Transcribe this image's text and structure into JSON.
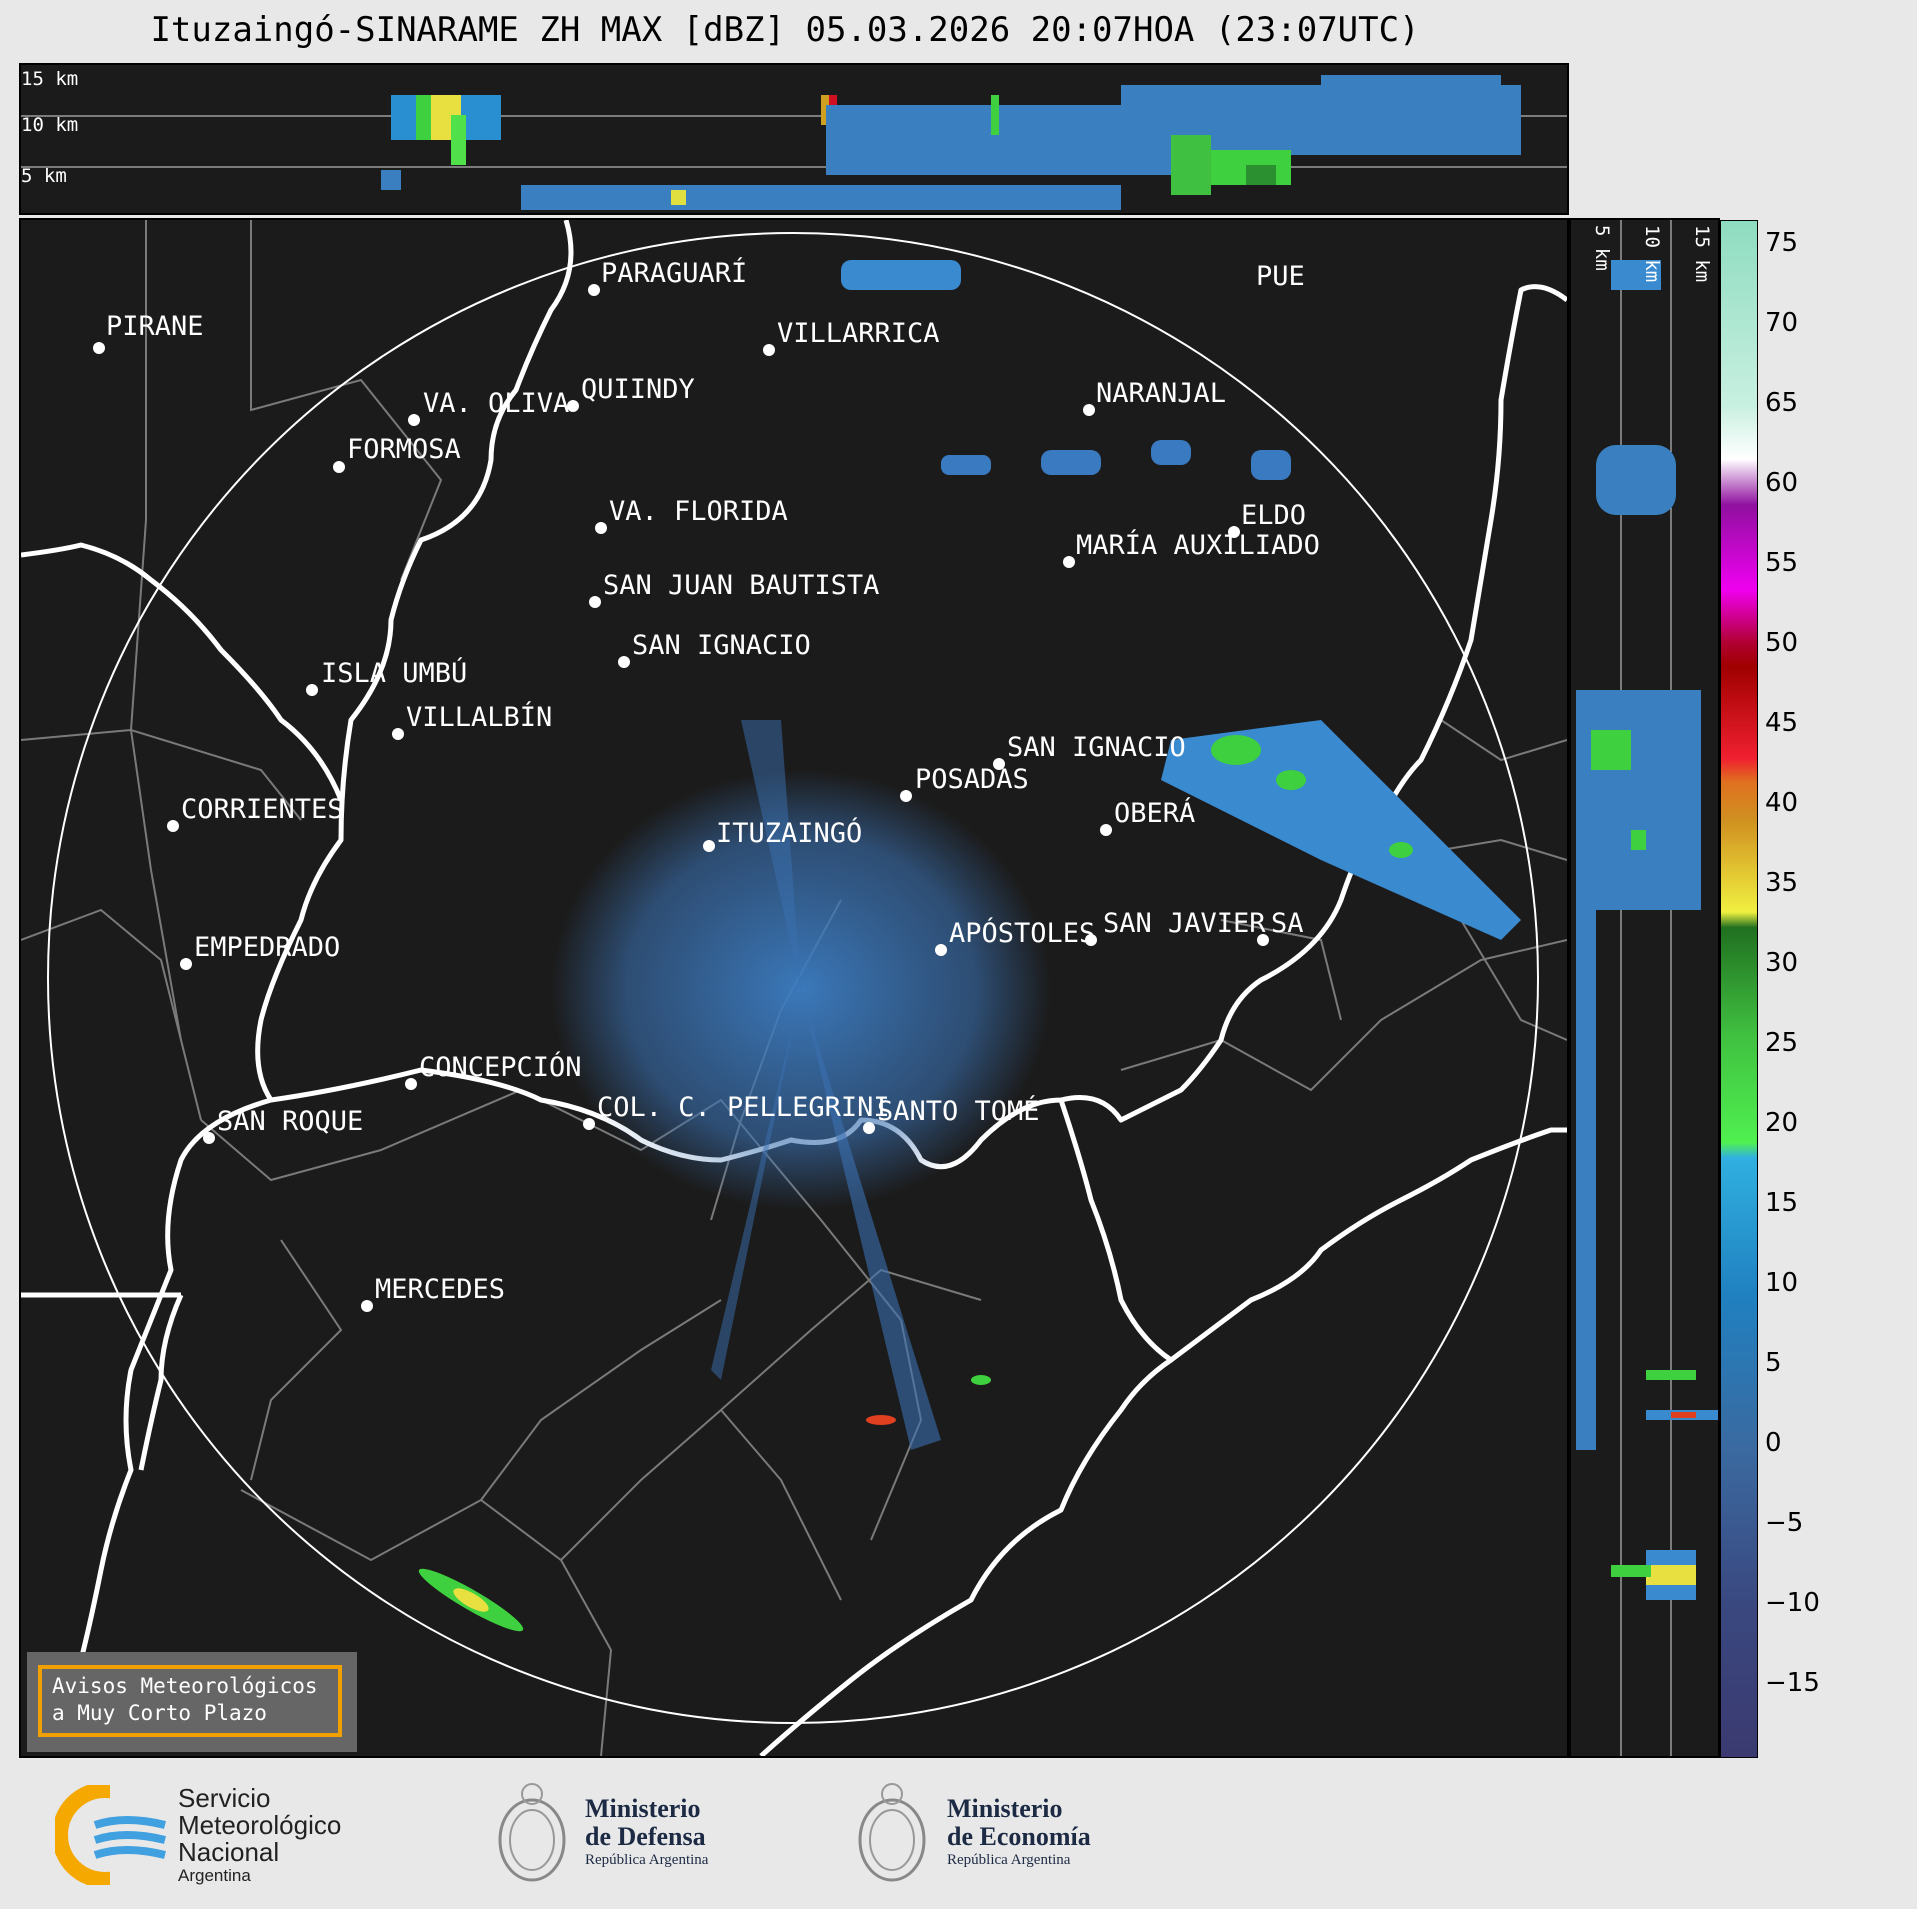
{
  "title": "Ituzaingó-SINARAME ZH MAX [dBZ] 05.03.2026 20:07HOA (23:07UTC)",
  "top_panel": {
    "altitude_labels": [
      "15 km",
      "10 km",
      "5 km"
    ]
  },
  "right_panel": {
    "altitude_labels": [
      "5 km",
      "10 km",
      "15 km"
    ]
  },
  "colorbar": {
    "ticks": [
      "75",
      "70",
      "65",
      "60",
      "55",
      "50",
      "45",
      "40",
      "35",
      "30",
      "25",
      "20",
      "15",
      "10",
      "5",
      "0",
      "−5",
      "−10",
      "−15"
    ]
  },
  "cities": [
    {
      "name": "PIRANE"
    },
    {
      "name": "PARAGUARÍ"
    },
    {
      "name": "VILLARRICA"
    },
    {
      "name": "QUIINDY"
    },
    {
      "name": "VA. OLIVA"
    },
    {
      "name": "FORMOSA"
    },
    {
      "name": "NARANJAL"
    },
    {
      "name": "PUE"
    },
    {
      "name": "ELDO"
    },
    {
      "name": "MARÍA AUXILIADO"
    },
    {
      "name": "VA. FLORIDA"
    },
    {
      "name": "SAN JUAN BAUTISTA"
    },
    {
      "name": "SAN IGNACIO"
    },
    {
      "name": "ISLA UMBÚ"
    },
    {
      "name": "VILLALBÍN"
    },
    {
      "name": "SAN IGNACIO"
    },
    {
      "name": "POSADAS"
    },
    {
      "name": "OBERÁ"
    },
    {
      "name": "CORRIENTES"
    },
    {
      "name": "ITUZAINGÓ"
    },
    {
      "name": "APÓSTOLES"
    },
    {
      "name": "SAN JAVIER"
    },
    {
      "name": "SA"
    },
    {
      "name": "EMPEDRADO"
    },
    {
      "name": "CONCEPCIÓN"
    },
    {
      "name": "COL. C. PELLEGRINI"
    },
    {
      "name": "SANTO TOMÉ"
    },
    {
      "name": "SAN ROQUE"
    },
    {
      "name": "MERCEDES"
    }
  ],
  "warning_box": {
    "line1": "Avisos Meteorológicos",
    "line2": "a Muy Corto Plazo"
  },
  "logos": {
    "smn": {
      "line1": "Servicio",
      "line2": "Meteorológico",
      "line3": "Nacional",
      "line4": "Argentina"
    },
    "defensa": {
      "line1": "Ministerio",
      "line2": "de Defensa",
      "line3": "República Argentina"
    },
    "economia": {
      "line1": "Ministerio",
      "line2": "de Economía",
      "line3": "República Argentina"
    }
  }
}
